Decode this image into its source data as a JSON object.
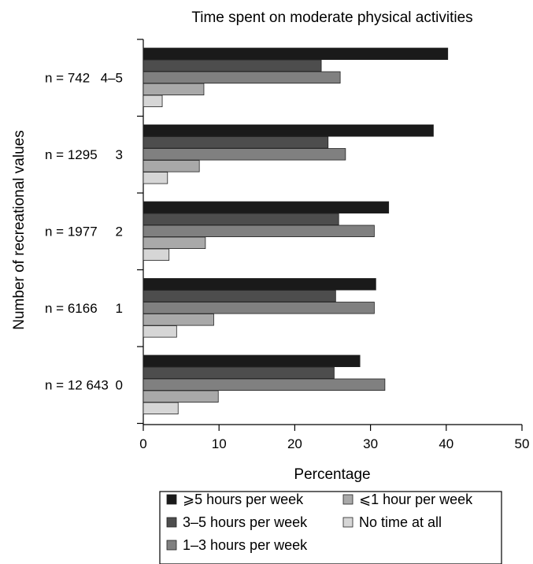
{
  "chart_data": {
    "type": "bar",
    "orientation": "horizontal",
    "title": "Time spent on moderate physical activities",
    "xlabel": "Percentage",
    "ylabel": "Number of recreational values",
    "xlim": [
      0,
      50
    ],
    "x_ticks": [
      0,
      10,
      20,
      30,
      40,
      50
    ],
    "grid": false,
    "legend_position": "bottom",
    "categories": [
      "4–5",
      "3",
      "2",
      "1",
      "0"
    ],
    "group_sizes": [
      "n = 742",
      "n = 1295",
      "n = 1977",
      "n = 6166",
      "n = 12 643"
    ],
    "series": [
      {
        "name": "⩾5 hours per week",
        "color": "#1a1a1a",
        "values": [
          40.2,
          38.3,
          32.4,
          30.7,
          28.6
        ]
      },
      {
        "name": "3–5 hours per week",
        "color": "#4d4d4d",
        "values": [
          23.5,
          24.4,
          25.8,
          25.4,
          25.2
        ]
      },
      {
        "name": "1–3 hours per week",
        "color": "#808080",
        "values": [
          26.0,
          26.7,
          30.5,
          30.5,
          31.9
        ]
      },
      {
        "name": "⩽1 hour per week",
        "color": "#a9a9a9",
        "values": [
          8.0,
          7.4,
          8.2,
          9.3,
          9.9
        ]
      },
      {
        "name": "No time at all",
        "color": "#d6d6d6",
        "values": [
          2.5,
          3.2,
          3.4,
          4.4,
          4.6
        ]
      }
    ],
    "legend_layout": [
      [
        0,
        3
      ],
      [
        1,
        4
      ],
      [
        2
      ]
    ]
  }
}
